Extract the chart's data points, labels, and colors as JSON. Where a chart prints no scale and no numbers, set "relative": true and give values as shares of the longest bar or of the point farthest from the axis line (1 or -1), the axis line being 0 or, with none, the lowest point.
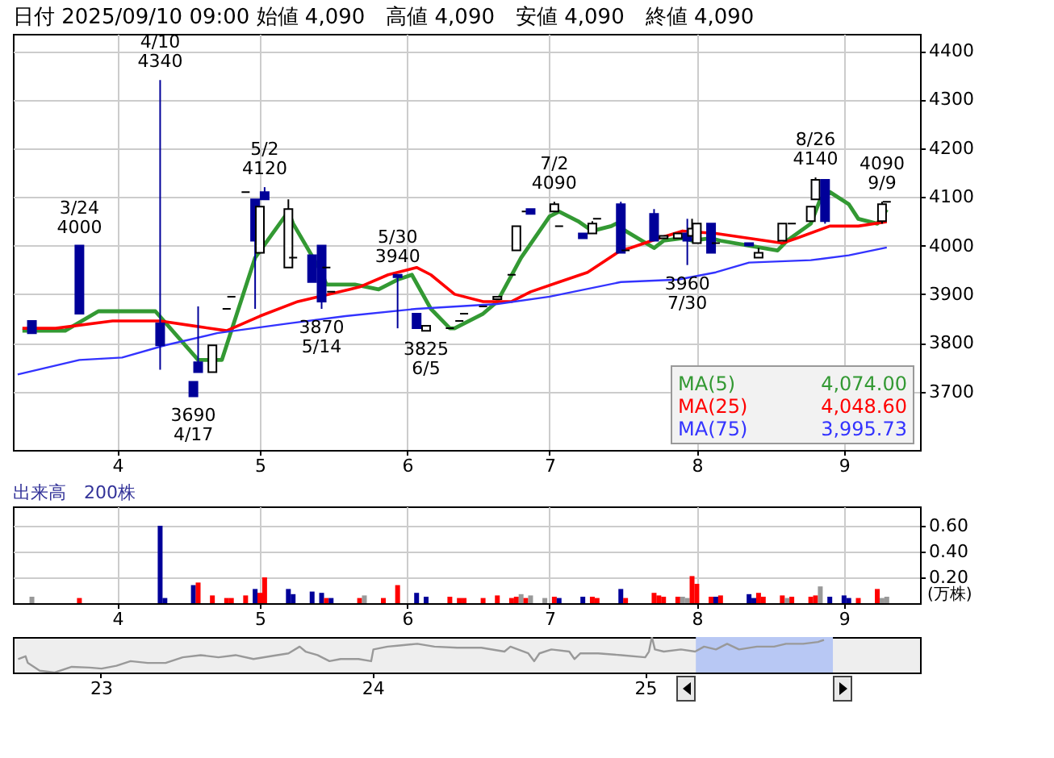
{
  "chart_data": [
    {
      "type": "candlestick",
      "title": "日付 2025/09/10 09:00 始値 4,090　高値 4,090　安値 4,090　終値 4,090",
      "x": [
        "2025-03-14",
        "2025-03-24",
        "2025-04-10",
        "2025-04-17",
        "2025-04-18",
        "2025-04-21",
        "2025-04-24",
        "2025-04-25",
        "2025-04-28",
        "2025-04-30",
        "2025-05-01",
        "2025-05-02",
        "2025-05-07",
        "2025-05-08",
        "2025-05-12",
        "2025-05-14",
        "2025-05-15",
        "2025-05-16",
        "2025-05-30",
        "2025-06-03",
        "2025-06-05",
        "2025-06-10",
        "2025-06-12",
        "2025-06-13",
        "2025-06-17",
        "2025-06-20",
        "2025-06-23",
        "2025-06-24",
        "2025-06-26",
        "2025-06-27",
        "2025-07-02",
        "2025-07-03",
        "2025-07-08",
        "2025-07-10",
        "2025-07-11",
        "2025-07-16",
        "2025-07-17",
        "2025-07-23",
        "2025-07-25",
        "2025-07-28",
        "2025-07-30",
        "2025-07-31",
        "2025-08-01",
        "2025-08-04",
        "2025-08-05",
        "2025-08-12",
        "2025-08-14",
        "2025-08-19",
        "2025-08-21",
        "2025-08-25",
        "2025-08-26",
        "2025-08-28",
        "2025-09-09",
        "2025-09-10"
      ],
      "ohlc": [
        [
          3845,
          3845,
          3820,
          3820
        ],
        [
          4000,
          4000,
          3860,
          3860
        ],
        [
          3840,
          4340,
          3745,
          3795
        ],
        [
          3720,
          3720,
          3690,
          3690
        ],
        [
          3760,
          3875,
          3740,
          3740
        ],
        [
          3740,
          3795,
          3740,
          3795
        ],
        [
          3870,
          3870,
          3870,
          3870
        ],
        [
          3895,
          3895,
          3895,
          3895
        ],
        [
          4110,
          4110,
          4110,
          4110
        ],
        [
          4095,
          4095,
          3870,
          4010
        ],
        [
          3985,
          4080,
          3985,
          4080
        ],
        [
          4110,
          4120,
          4095,
          4095
        ],
        [
          3955,
          4095,
          3955,
          4075
        ],
        [
          3975,
          3975,
          3975,
          3975
        ],
        [
          3980,
          3980,
          3925,
          3925
        ],
        [
          4000,
          4000,
          3870,
          3885
        ],
        [
          3955,
          3955,
          3955,
          3955
        ],
        [
          3905,
          3905,
          3905,
          3905
        ],
        [
          3940,
          3940,
          3830,
          3935
        ],
        [
          3860,
          3860,
          3830,
          3830
        ],
        [
          3825,
          3835,
          3825,
          3835
        ],
        [
          3830,
          3830,
          3830,
          3830
        ],
        [
          3845,
          3845,
          3845,
          3845
        ],
        [
          3860,
          3860,
          3860,
          3860
        ],
        [
          3875,
          3875,
          3875,
          3875
        ],
        [
          3890,
          3895,
          3890,
          3895
        ],
        [
          3940,
          3940,
          3940,
          3940
        ],
        [
          3990,
          4040,
          3990,
          4040
        ],
        [
          4070,
          4070,
          4070,
          4070
        ],
        [
          4075,
          4075,
          4065,
          4065
        ],
        [
          4070,
          4090,
          4070,
          4085
        ],
        [
          4040,
          4040,
          4040,
          4040
        ],
        [
          4025,
          4025,
          4015,
          4015
        ],
        [
          4025,
          4050,
          4025,
          4045
        ],
        [
          4055,
          4055,
          4055,
          4055
        ],
        [
          4085,
          4090,
          3985,
          3985
        ],
        [
          3990,
          3990,
          3990,
          3990
        ],
        [
          4065,
          4075,
          4010,
          4010
        ],
        [
          4015,
          4020,
          4015,
          4020
        ],
        [
          4015,
          4025,
          4015,
          4025
        ],
        [
          4025,
          4055,
          3960,
          4010
        ],
        [
          4020,
          4055,
          4020,
          4035
        ],
        [
          4005,
          4045,
          4005,
          4045
        ],
        [
          4045,
          4045,
          3985,
          3985
        ],
        [
          4005,
          4005,
          4005,
          4005
        ],
        [
          4005,
          4005,
          4000,
          4000
        ],
        [
          3975,
          3995,
          3975,
          3985
        ],
        [
          4010,
          4045,
          4010,
          4045
        ],
        [
          4045,
          4045,
          4045,
          4045
        ],
        [
          4050,
          4080,
          4050,
          4080
        ],
        [
          4095,
          4140,
          4095,
          4135
        ],
        [
          4135,
          4135,
          4045,
          4050
        ],
        [
          4050,
          4090,
          4045,
          4085
        ],
        [
          4090,
          4090,
          4090,
          4090
        ]
      ],
      "series": [
        {
          "name": "MA(5)",
          "type": "line",
          "color": "#339933",
          "x": [
            "2025-03-12",
            "2025-03-21",
            "2025-03-28",
            "2025-04-09",
            "2025-04-18",
            "2025-04-23",
            "2025-04-30",
            "2025-05-07",
            "2025-05-08",
            "2025-05-14",
            "2025-05-15",
            "2025-05-21",
            "2025-05-26",
            "2025-05-30",
            "2025-06-02",
            "2025-06-06",
            "2025-06-10",
            "2025-06-11",
            "2025-06-17",
            "2025-06-20",
            "2025-06-25",
            "2025-07-01",
            "2025-07-03",
            "2025-07-07",
            "2025-07-10",
            "2025-07-14",
            "2025-07-15",
            "2025-07-17",
            "2025-07-23",
            "2025-07-25",
            "2025-07-29",
            "2025-07-31",
            "2025-08-04",
            "2025-08-06",
            "2025-08-12",
            "2025-08-18",
            "2025-08-20",
            "2025-08-25",
            "2025-08-27",
            "2025-08-29",
            "2025-09-02",
            "2025-09-04",
            "2025-09-08",
            "2025-09-10"
          ],
          "values": [
            3825,
            3825,
            3865,
            3865,
            3765,
            3765,
            3975,
            4070,
            4045,
            3945,
            3920,
            3920,
            3910,
            3930,
            3940,
            3870,
            3830,
            3830,
            3860,
            3885,
            3975,
            4060,
            4070,
            4050,
            4030,
            4040,
            4045,
            4030,
            3995,
            4010,
            4015,
            4010,
            4015,
            4010,
            4000,
            3990,
            4010,
            4045,
            4095,
            4110,
            4085,
            4055,
            4045,
            4074
          ]
        },
        {
          "name": "MA(25)",
          "type": "line",
          "color": "#ff0000",
          "x": [
            "2025-03-12",
            "2025-03-19",
            "2025-03-31",
            "2025-04-10",
            "2025-04-17",
            "2025-04-24",
            "2025-05-01",
            "2025-05-09",
            "2025-05-20",
            "2025-05-22",
            "2025-05-28",
            "2025-06-03",
            "2025-06-06",
            "2025-06-11",
            "2025-06-17",
            "2025-06-23",
            "2025-06-27",
            "2025-07-03",
            "2025-07-09",
            "2025-07-16",
            "2025-07-18",
            "2025-07-24",
            "2025-07-29",
            "2025-08-05",
            "2025-08-12",
            "2025-08-19",
            "2025-08-22",
            "2025-08-29",
            "2025-09-04",
            "2025-09-10"
          ],
          "values": [
            3830,
            3830,
            3845,
            3845,
            3835,
            3825,
            3855,
            3885,
            3910,
            3915,
            3940,
            3955,
            3940,
            3900,
            3885,
            3885,
            3905,
            3925,
            3945,
            3990,
            3995,
            4015,
            4030,
            4025,
            4015,
            4005,
            4015,
            4040,
            4040,
            4049
          ]
        },
        {
          "name": "MA(75)",
          "type": "line",
          "color": "#3333ff",
          "x": [
            "2025-03-11",
            "2025-03-24",
            "2025-04-02",
            "2025-04-11",
            "2025-04-22",
            "2025-05-07",
            "2025-05-19",
            "2025-06-03",
            "2025-06-20",
            "2025-07-01",
            "2025-07-16",
            "2025-07-28",
            "2025-08-05",
            "2025-08-12",
            "2025-08-25",
            "2025-09-02",
            "2025-09-10"
          ],
          "values": [
            3735,
            3765,
            3770,
            3795,
            3820,
            3840,
            3855,
            3870,
            3880,
            3895,
            3925,
            3930,
            3945,
            3965,
            3970,
            3980,
            3996
          ]
        }
      ],
      "annotations": [
        "4,074.00",
        "4,048.60",
        "3,995.73",
        {
          "text": "3/24\n4000",
          "x": "2025-03-24",
          "y": 4000
        },
        {
          "text": "4/10\n4340",
          "x": "2025-04-10",
          "y": 4340
        },
        {
          "text": "3690\n4/17",
          "x": "2025-04-17",
          "y": 3690
        },
        {
          "text": "5/2\n4120",
          "x": "2025-05-02",
          "y": 4120
        },
        {
          "text": "3870\n5/14",
          "x": "2025-05-14",
          "y": 3870
        },
        {
          "text": "5/30\n3940",
          "x": "2025-05-30",
          "y": 3940
        },
        {
          "text": "3825\n6/5",
          "x": "2025-06-05",
          "y": 3825
        },
        {
          "text": "7/2\n4090",
          "x": "2025-07-02",
          "y": 4090
        },
        {
          "text": "3960\n7/30",
          "x": "2025-07-30",
          "y": 3960
        },
        {
          "text": "8/26\n4140",
          "x": "2025-08-26",
          "y": 4140
        },
        {
          "text": "4090\n9/9",
          "x": "2025-09-09",
          "y": 4090
        }
      ],
      "xlim": [
        "2025-03-10",
        "2025-09-17"
      ],
      "xticks": [
        {
          "value": "2025-04-01",
          "label": "4"
        },
        {
          "value": "2025-05-01",
          "label": "5"
        },
        {
          "value": "2025-06-01",
          "label": "6"
        },
        {
          "value": "2025-07-01",
          "label": "7"
        },
        {
          "value": "2025-08-01",
          "label": "8"
        },
        {
          "value": "2025-09-01",
          "label": "9"
        }
      ],
      "ylim": [
        3580,
        4435
      ],
      "yticks": [
        3700,
        3800,
        3900,
        4000,
        4100,
        4200,
        4300,
        4400
      ],
      "grid": true,
      "legend": "bottom right"
    },
    {
      "type": "bar",
      "title": "出来高　200株",
      "ylabel": "(万株)",
      "x": [
        "2025-03-14",
        "2025-03-24",
        "2025-04-10",
        "2025-04-11",
        "2025-04-17",
        "2025-04-18",
        "2025-04-21",
        "2025-04-24",
        "2025-04-25",
        "2025-04-28",
        "2025-04-30",
        "2025-05-01",
        "2025-05-02",
        "2025-05-07",
        "2025-05-08",
        "2025-05-12",
        "2025-05-14",
        "2025-05-15",
        "2025-05-16",
        "2025-05-22",
        "2025-05-23",
        "2025-05-27",
        "2025-05-30",
        "2025-06-03",
        "2025-06-05",
        "2025-06-10",
        "2025-06-12",
        "2025-06-13",
        "2025-06-17",
        "2025-06-20",
        "2025-06-23",
        "2025-06-24",
        "2025-06-25",
        "2025-06-26",
        "2025-06-27",
        "2025-06-30",
        "2025-07-02",
        "2025-07-03",
        "2025-07-08",
        "2025-07-10",
        "2025-07-11",
        "2025-07-16",
        "2025-07-17",
        "2025-07-23",
        "2025-07-24",
        "2025-07-25",
        "2025-07-28",
        "2025-07-29",
        "2025-07-30",
        "2025-07-31",
        "2025-08-01",
        "2025-08-04",
        "2025-08-05",
        "2025-08-06",
        "2025-08-12",
        "2025-08-13",
        "2025-08-14",
        "2025-08-15",
        "2025-08-19",
        "2025-08-20",
        "2025-08-21",
        "2025-08-25",
        "2025-08-26",
        "2025-08-27",
        "2025-08-29",
        "2025-09-01",
        "2025-09-02",
        "2025-09-04",
        "2025-09-08",
        "2025-09-09",
        "2025-09-10"
      ],
      "values": [
        0.05,
        0.04,
        0.6,
        0.04,
        0.14,
        0.16,
        0.06,
        0.04,
        0.04,
        0.06,
        0.11,
        0.08,
        0.2,
        0.11,
        0.07,
        0.09,
        0.08,
        0.04,
        0.04,
        0.04,
        0.06,
        0.04,
        0.14,
        0.08,
        0.05,
        0.05,
        0.04,
        0.04,
        0.04,
        0.06,
        0.04,
        0.05,
        0.07,
        0.04,
        0.06,
        0.04,
        0.05,
        0.04,
        0.05,
        0.05,
        0.04,
        0.11,
        0.04,
        0.08,
        0.06,
        0.05,
        0.05,
        0.05,
        0.04,
        0.21,
        0.15,
        0.05,
        0.05,
        0.06,
        0.07,
        0.04,
        0.08,
        0.05,
        0.06,
        0.04,
        0.05,
        0.05,
        0.06,
        0.13,
        0.05,
        0.06,
        0.04,
        0.04,
        0.11,
        0.04,
        0.05
      ],
      "colors": [
        "#999999",
        "#ff0000",
        "#000099",
        "#000099",
        "#000099",
        "#ff0000",
        "#ff0000",
        "#ff0000",
        "#ff0000",
        "#ff0000",
        "#000099",
        "#ff0000",
        "#ff0000",
        "#000099",
        "#000099",
        "#000099",
        "#000099",
        "#ff0000",
        "#000099",
        "#ff0000",
        "#999999",
        "#ff0000",
        "#ff0000",
        "#000099",
        "#000099",
        "#ff0000",
        "#ff0000",
        "#ff0000",
        "#ff0000",
        "#ff0000",
        "#ff0000",
        "#ff0000",
        "#999999",
        "#ff0000",
        "#999999",
        "#999999",
        "#ff0000",
        "#000099",
        "#000099",
        "#ff0000",
        "#ff0000",
        "#000099",
        "#ff0000",
        "#ff0000",
        "#ff0000",
        "#ff0000",
        "#ff0000",
        "#999999",
        "#999999",
        "#ff0000",
        "#ff0000",
        "#ff0000",
        "#000099",
        "#ff0000",
        "#000099",
        "#000099",
        "#ff0000",
        "#ff0000",
        "#ff0000",
        "#999999",
        "#ff0000",
        "#ff0000",
        "#ff0000",
        "#999999",
        "#000099",
        "#000099",
        "#000099",
        "#ff0000",
        "#ff0000",
        "#999999",
        "#999999"
      ],
      "xlim": [
        "2025-03-10",
        "2025-09-17"
      ],
      "xticks": [
        {
          "value": "2025-04-01",
          "label": "4"
        },
        {
          "value": "2025-05-01",
          "label": "5"
        },
        {
          "value": "2025-06-01",
          "label": "6"
        },
        {
          "value": "2025-07-01",
          "label": "7"
        },
        {
          "value": "2025-08-01",
          "label": "8"
        },
        {
          "value": "2025-09-01",
          "label": "9"
        }
      ],
      "ylim": [
        0,
        0.75
      ],
      "yticks": [
        {
          "value": 0.2,
          "label": "0.20"
        },
        {
          "value": 0.4,
          "label": "0.40"
        },
        {
          "value": 0.6,
          "label": "0.60"
        }
      ],
      "grid": true
    },
    {
      "type": "line",
      "relative": true,
      "color": "#999999",
      "x": [
        "2022-09-12",
        "2022-09-22",
        "2022-09-25",
        "2022-10-11",
        "2022-10-31",
        "2022-11-23",
        "2022-12-17",
        "2023-01-02",
        "2023-01-22",
        "2023-02-10",
        "2023-03-05",
        "2023-03-29",
        "2023-04-21",
        "2023-05-15",
        "2023-06-08",
        "2023-07-01",
        "2023-07-25",
        "2023-08-17",
        "2023-09-10",
        "2023-09-25",
        "2023-10-03",
        "2023-10-19",
        "2023-11-04",
        "2023-11-19",
        "2023-12-13",
        "2023-12-30",
        "2024-01-02",
        "2024-01-21",
        "2024-02-06",
        "2024-03-01",
        "2024-03-24",
        "2024-04-24",
        "2024-05-26",
        "2024-06-26",
        "2024-07-04",
        "2024-07-28",
        "2024-08-05",
        "2024-08-12",
        "2024-08-28",
        "2024-09-21",
        "2024-09-28",
        "2024-10-06",
        "2024-10-30",
        "2024-11-30",
        "2025-01-01",
        "2025-01-06",
        "2025-01-10",
        "2025-01-14",
        "2025-01-26",
        "2025-02-18",
        "2025-03-09",
        "2025-03-21",
        "2025-04-06",
        "2025-04-21",
        "2025-05-07",
        "2025-05-31",
        "2025-06-23",
        "2025-07-09",
        "2025-08-01",
        "2025-08-21",
        "2025-08-29"
      ],
      "values": [
        0.38,
        0.46,
        0.27,
        0.05,
        0,
        0.16,
        0.14,
        0.11,
        0.19,
        0.32,
        0.27,
        0.27,
        0.43,
        0.49,
        0.43,
        0.49,
        0.38,
        0.46,
        0.54,
        0.73,
        0.59,
        0.49,
        0.32,
        0.38,
        0.38,
        0.32,
        0.65,
        0.73,
        0.76,
        0.81,
        0.73,
        0.7,
        0.7,
        0.59,
        0.73,
        0.54,
        0.32,
        0.54,
        0.65,
        0.59,
        0.38,
        0.54,
        0.54,
        0.49,
        0.43,
        0.59,
        1,
        0.65,
        0.59,
        0.65,
        0.59,
        0.73,
        0.65,
        0.81,
        0.65,
        0.73,
        0.73,
        0.81,
        0.81,
        0.86,
        0.92
      ],
      "xlim": [
        "2022-09-05",
        "2026-01-05"
      ],
      "xticks": [
        {
          "value": "2023-01-01",
          "label": "23"
        },
        {
          "value": "2024-01-01",
          "label": "24"
        },
        {
          "value": "2025-01-01",
          "label": "25"
        }
      ],
      "bands": [
        {
          "axis": "x",
          "from": "2025-03-10",
          "to": "2025-09-10",
          "color": "#b8c8f4"
        }
      ]
    }
  ]
}
